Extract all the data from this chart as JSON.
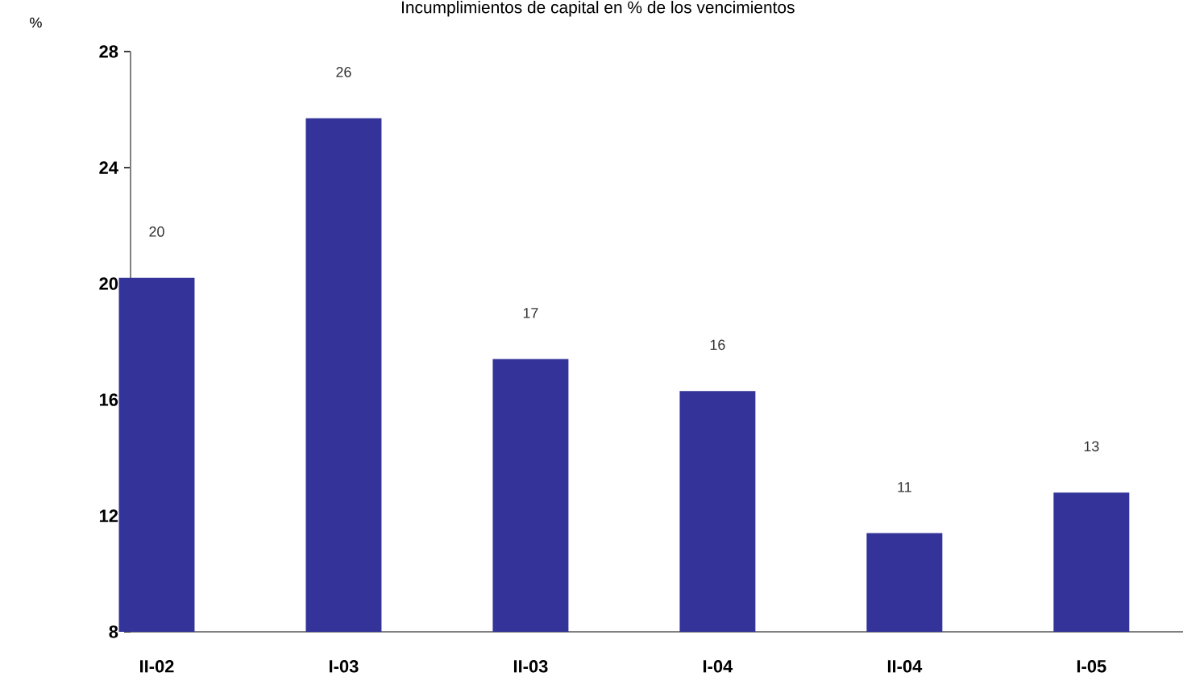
{
  "chart_data": {
    "type": "bar",
    "title": "Incumplimientos de capital en % de los vencimientos",
    "ylabel": "%",
    "categories": [
      "II-02",
      "I-03",
      "II-03",
      "I-04",
      "II-04",
      "I-05"
    ],
    "values": [
      20.2,
      25.7,
      17.4,
      16.3,
      11.4,
      12.8
    ],
    "value_labels": [
      "20",
      "26",
      "17",
      "16",
      "11",
      "13"
    ],
    "color": "#333399",
    "ylim": [
      8,
      28
    ],
    "yticks": [
      8,
      12,
      16,
      20,
      24,
      28
    ]
  }
}
